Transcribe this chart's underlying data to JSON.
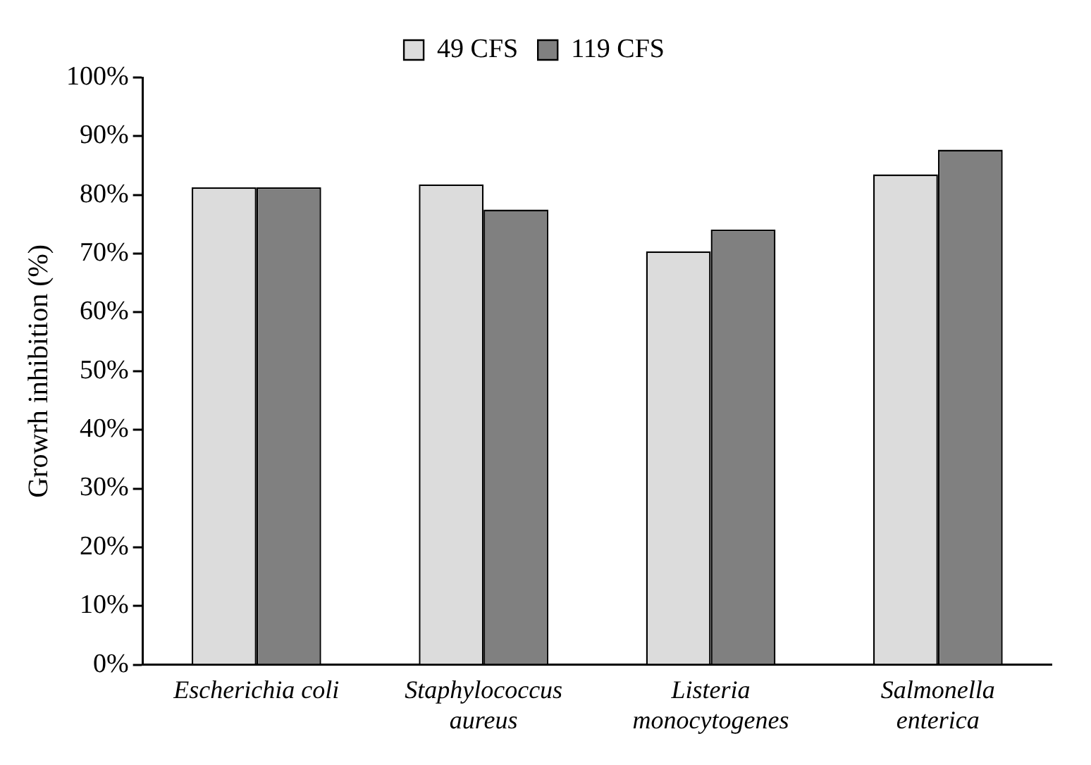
{
  "chart_data": {
    "type": "bar",
    "ylabel": "Growrh inhibition (%)",
    "categories": [
      "Escherichia coli",
      "Staphylococcus aureus",
      "Listeria monocytogenes",
      "Salmonella enterica"
    ],
    "series": [
      {
        "name": "49 CFS",
        "color": "#dcdcdc",
        "values": [
          81.3,
          81.8,
          70.4,
          83.5
        ]
      },
      {
        "name": "119 CFS",
        "color": "#808080",
        "values": [
          81.3,
          77.5,
          74.1,
          87.7
        ]
      }
    ],
    "ylim": [
      0,
      100
    ],
    "yticks": [
      {
        "value": 0,
        "label": "0%"
      },
      {
        "value": 10,
        "label": "10%"
      },
      {
        "value": 20,
        "label": "20%"
      },
      {
        "value": 30,
        "label": "30%"
      },
      {
        "value": 40,
        "label": "40%"
      },
      {
        "value": 50,
        "label": "50%"
      },
      {
        "value": 60,
        "label": "60%"
      },
      {
        "value": 70,
        "label": "70%"
      },
      {
        "value": 80,
        "label": "80%"
      },
      {
        "value": 90,
        "label": "90%"
      },
      {
        "value": 100,
        "label": "100%"
      }
    ],
    "grid": false,
    "legend": "top"
  }
}
